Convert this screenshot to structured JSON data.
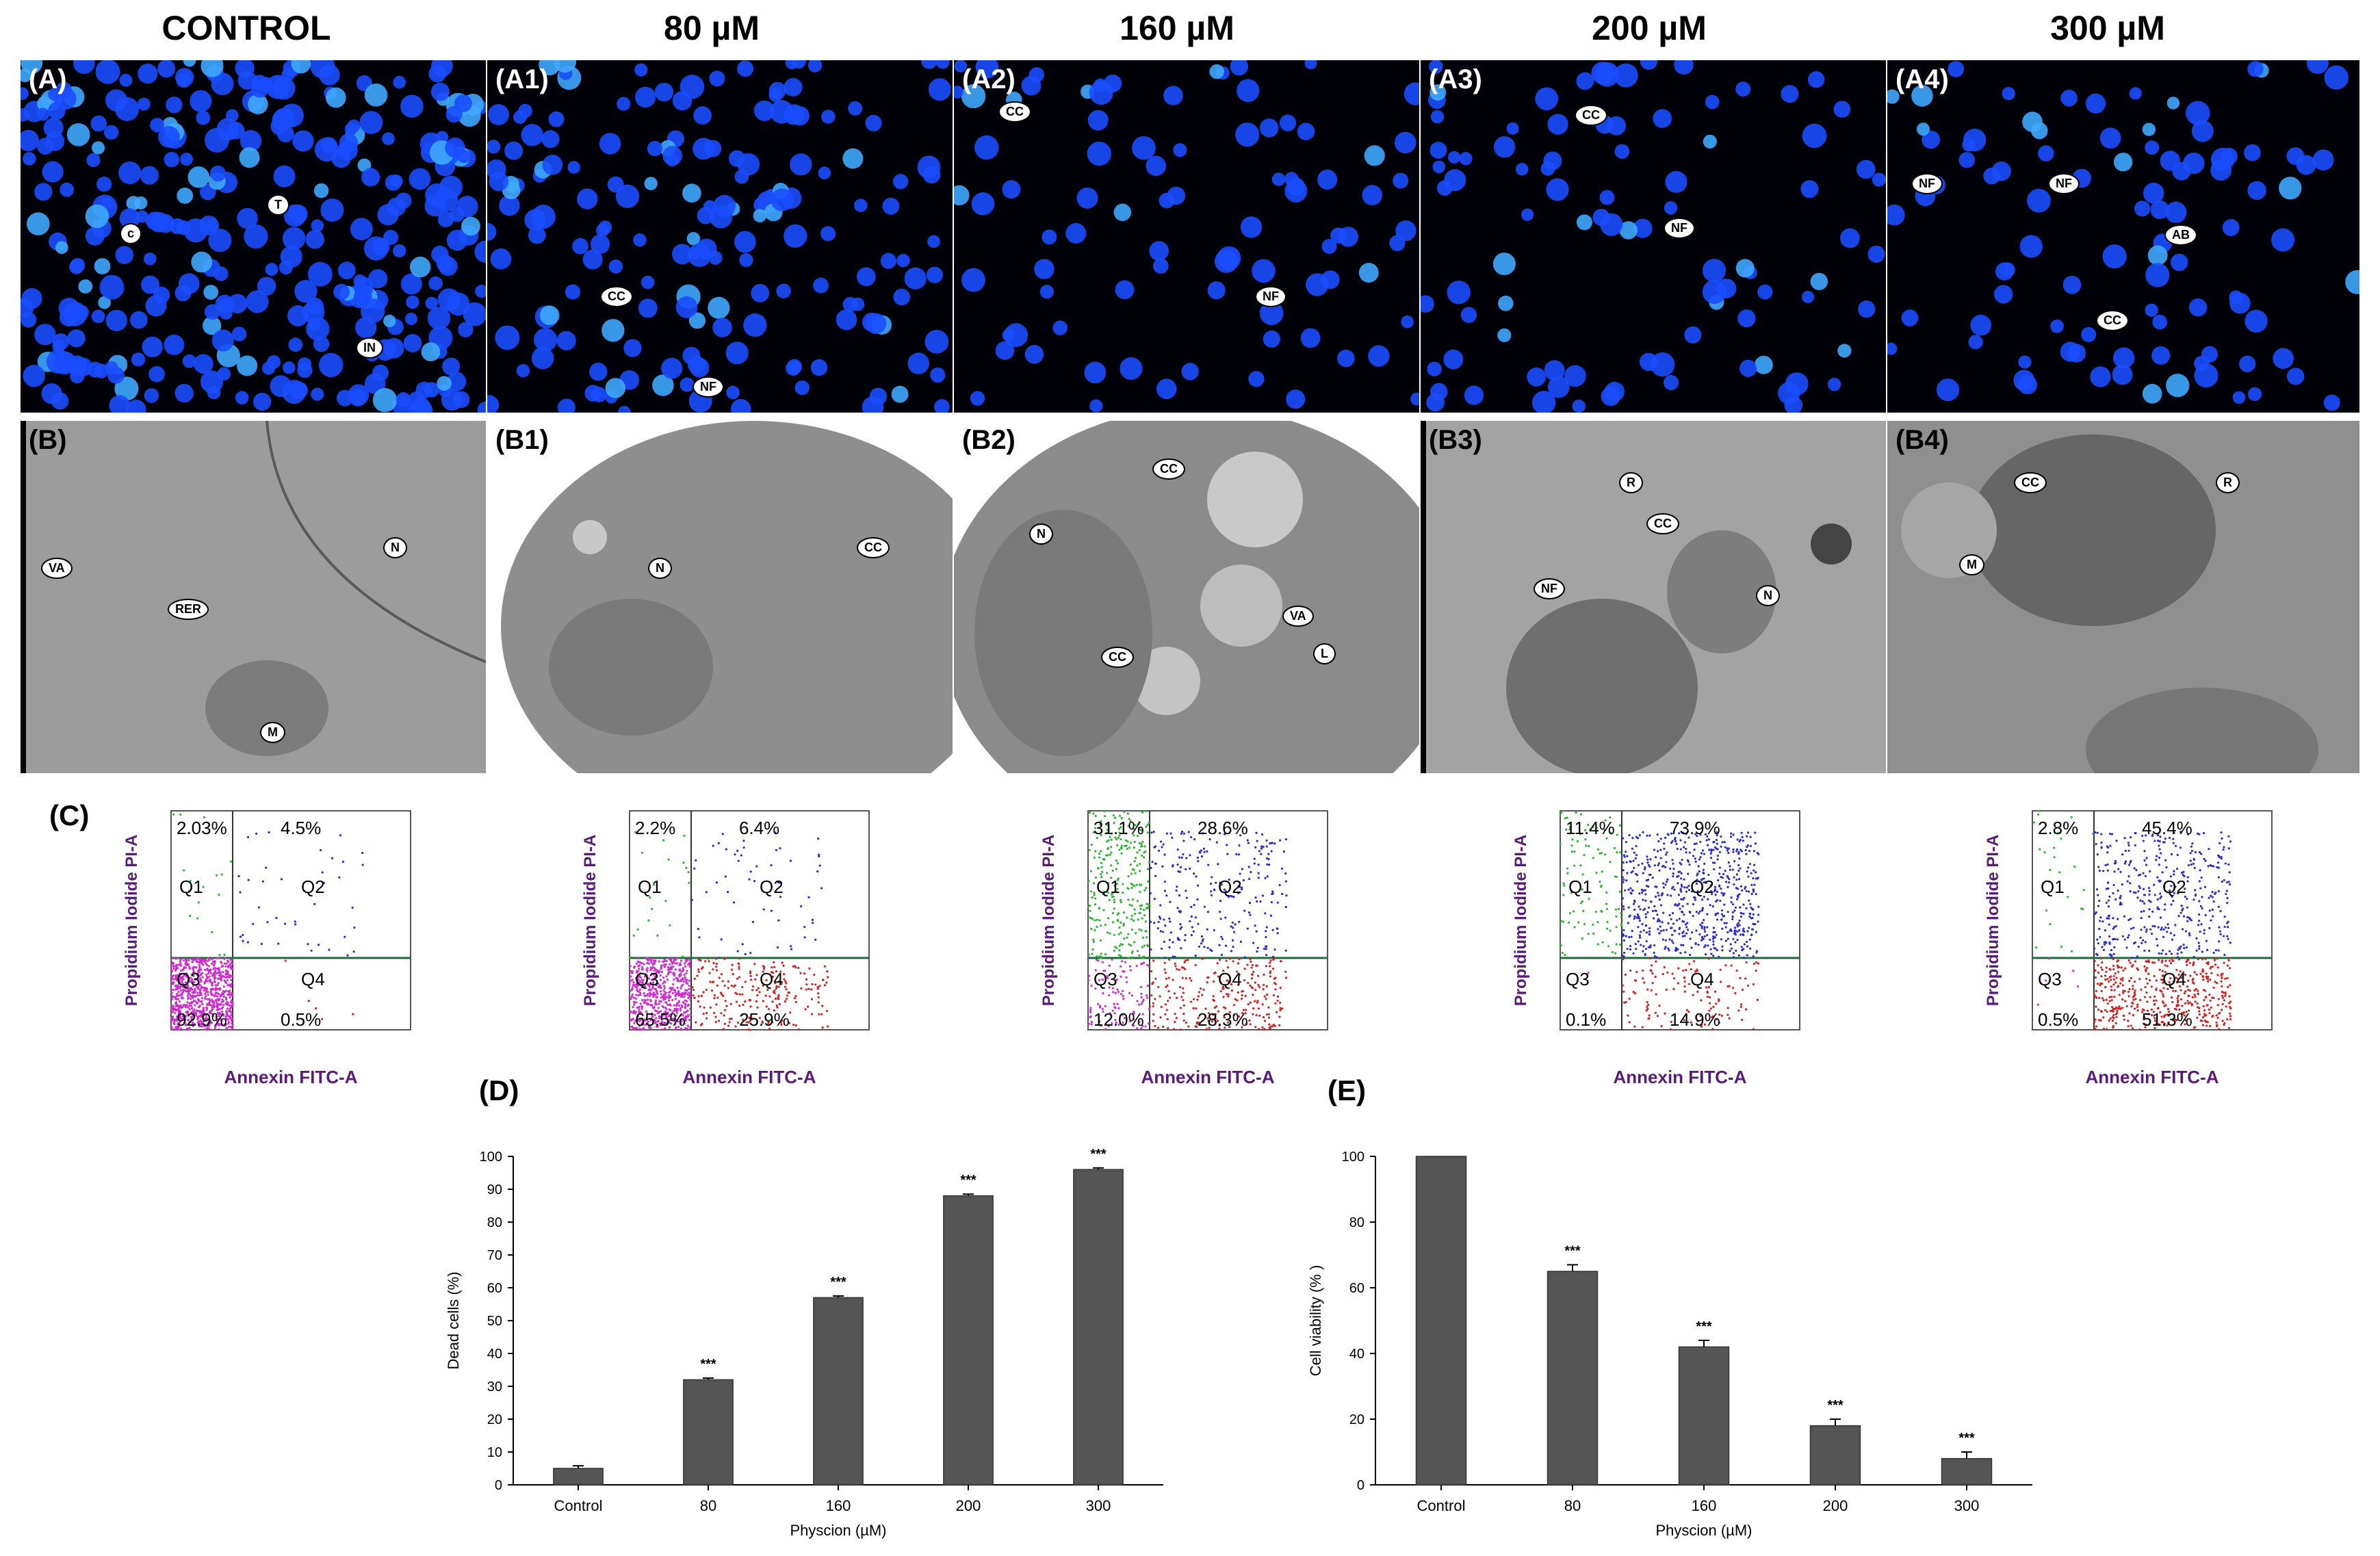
{
  "columns": [
    "CONTROL",
    "80 µM",
    "160 µM",
    "200 µM",
    "300 µM"
  ],
  "row_a": [
    {
      "label": "(A)",
      "annotations": [
        "c",
        "T",
        "IN"
      ]
    },
    {
      "label": "(A1)",
      "annotations": [
        "CC",
        "NF"
      ]
    },
    {
      "label": "(A2)",
      "annotations": [
        "CC",
        "NF"
      ]
    },
    {
      "label": "(A3)",
      "annotations": [
        "CC",
        "NF"
      ]
    },
    {
      "label": "(A4)",
      "annotations": [
        "NF",
        "NF",
        "AB",
        "CC"
      ]
    }
  ],
  "row_b": [
    {
      "label": "(B)",
      "annotations": [
        "VA",
        "RER",
        "N",
        "M"
      ]
    },
    {
      "label": "(B1)",
      "annotations": [
        "N",
        "CC"
      ]
    },
    {
      "label": "(B2)",
      "annotations": [
        "CC",
        "N",
        "VA",
        "L",
        "CC"
      ]
    },
    {
      "label": "(B3)",
      "annotations": [
        "R",
        "CC",
        "NF",
        "N"
      ]
    },
    {
      "label": "(B4)",
      "annotations": [
        "CC",
        "R",
        "M"
      ]
    }
  ],
  "flow": {
    "label": "(C)",
    "ylabel": "Propidium Iodide PI-A",
    "xlabel": "Annexin FITC-A",
    "quadrant_names": [
      "Q1",
      "Q2",
      "Q3",
      "Q4"
    ],
    "plots": [
      {
        "Q1": "2.03%",
        "Q2": "4.5%",
        "Q3": "92.9%",
        "Q4": "0.5%"
      },
      {
        "Q1": "2.2%",
        "Q2": "6.4%",
        "Q3": "65.5%",
        "Q4": "25.9%"
      },
      {
        "Q1": "31.1%",
        "Q2": "28.6%",
        "Q3": "12.0%",
        "Q4": "28.3%"
      },
      {
        "Q1": "11.4%",
        "Q2": "73.9%",
        "Q3": "0.1%",
        "Q4": "14.9%"
      },
      {
        "Q1": "2.8%",
        "Q2": "45.4%",
        "Q3": "0.5%",
        "Q4": "51.3%"
      }
    ]
  },
  "colors": {
    "fluor_bg": "#000008",
    "nucleus": "#1a4dff",
    "bar": "#555555",
    "flow_frame": "#7b2a8c",
    "flow_gate": "#1e6b3a"
  },
  "chart_data": [
    {
      "label": "(D)",
      "type": "bar",
      "categories": [
        "Control",
        "80",
        "160",
        "200",
        "300"
      ],
      "values": [
        5,
        32,
        57,
        88,
        96
      ],
      "errors": [
        0.8,
        0.5,
        0.5,
        0.5,
        0.5
      ],
      "significance": [
        "",
        "***",
        "***",
        "***",
        "***"
      ],
      "xlabel": "Physcion (µM)",
      "ylabel": "Dead cells (%)",
      "ylim": [
        0,
        100
      ],
      "yticks": [
        0,
        10,
        20,
        30,
        40,
        50,
        60,
        70,
        80,
        90,
        100
      ]
    },
    {
      "label": "(E)",
      "type": "bar",
      "categories": [
        "Control",
        "80",
        "160",
        "200",
        "300"
      ],
      "values": [
        100,
        65,
        42,
        18,
        8
      ],
      "errors": [
        0,
        2,
        2,
        2,
        2
      ],
      "significance": [
        "",
        "***",
        "***",
        "***",
        "***"
      ],
      "xlabel": "Physcion (µM)",
      "ylabel": "Cell viability (% )",
      "ylim": [
        0,
        100
      ],
      "yticks": [
        0,
        20,
        40,
        60,
        80,
        100
      ]
    }
  ]
}
